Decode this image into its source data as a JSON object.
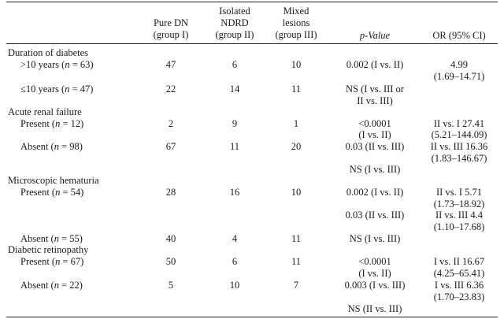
{
  "header": {
    "group1": [
      "Pure DN",
      "(group I)"
    ],
    "group2": [
      "Isolated",
      "NDRD",
      "(group II)"
    ],
    "group3": [
      "Mixed",
      "lesions",
      "(group III)"
    ],
    "pvalue": "p-Value",
    "or": "OR (95% CI)"
  },
  "sections": {
    "diabetes": {
      "title": "Duration of diabetes",
      "rows": [
        {
          "label": ">10 years (n = 63)",
          "g1": "47",
          "g2": "6",
          "g3": "10"
        },
        {
          "label": "≤10 years (n = 47)",
          "g1": "22",
          "g2": "14",
          "g3": "11"
        }
      ],
      "p": [
        "0.002 (I vs. II)",
        "NS (I vs. III or",
        "II vs. III)"
      ],
      "or": [
        "4.99",
        "(1.69–14.71)"
      ]
    },
    "arf": {
      "title": "Acute renal failure",
      "rows": [
        {
          "label": "Present (n = 12)",
          "g1": "2",
          "g2": "9",
          "g3": "1"
        },
        {
          "label": "Absent (n = 98)",
          "g1": "67",
          "g2": "11",
          "g3": "20"
        }
      ],
      "p": [
        "<0.0001",
        "(I vs. II)",
        "0.03 (II vs. III)",
        "NS (I vs. III)"
      ],
      "or": [
        "II vs. I 27.41",
        "(5.21–144.09)",
        "II vs. III 16.36",
        "(1.83–146.67)"
      ]
    },
    "hematuria": {
      "title": "Microscopic hematuria",
      "rows": [
        {
          "label": "Present (n = 54)",
          "g1": "28",
          "g2": "16",
          "g3": "10"
        },
        {
          "label": "Absent (n = 55)",
          "g1": "40",
          "g2": "4",
          "g3": "11"
        }
      ],
      "p": [
        "0.002 (I vs. II)",
        "0.03 (II vs. III)",
        "NS (I vs. III)"
      ],
      "or": [
        "II vs. I 5.71",
        "(1.73–18.92)",
        "II vs. III 4.4",
        "(1.10–17.68)"
      ]
    },
    "retinopathy": {
      "title": "Diabetic retinopathy",
      "rows": [
        {
          "label": "Present (n = 67)",
          "g1": "50",
          "g2": "6",
          "g3": "11"
        },
        {
          "label": "Absent (n = 22)",
          "g1": "5",
          "g2": "10",
          "g3": "7"
        }
      ],
      "p": [
        "<0.0001",
        "(I vs. II)",
        "0.003 (I vs. III)",
        "NS (II vs. III)"
      ],
      "or": [
        "I vs. II 16.67",
        "(4.25–65.41)",
        "I vs. III 6.36",
        "(1.70–23.83)"
      ]
    }
  }
}
